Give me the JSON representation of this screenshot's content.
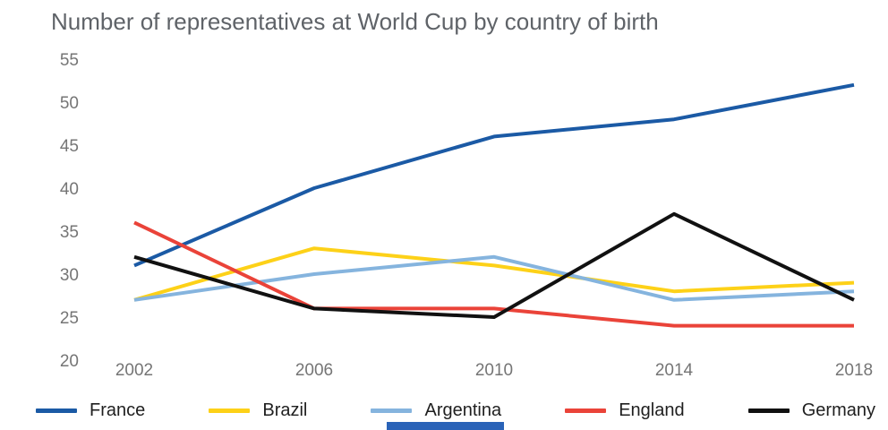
{
  "title": "Number of representatives at World Cup by country of birth",
  "axis": {
    "tick_color": "#757575",
    "tick_font_px": 19
  },
  "chart_data": {
    "type": "line",
    "title": "Number of representatives at World Cup by country of birth",
    "x": [
      "2002",
      "2006",
      "2010",
      "2014",
      "2018"
    ],
    "series": [
      {
        "name": "France",
        "color": "#1b5aa5",
        "values": [
          31,
          40,
          46,
          48,
          52
        ]
      },
      {
        "name": "Brazil",
        "color": "#fdd118",
        "values": [
          27,
          33,
          31,
          28,
          29
        ]
      },
      {
        "name": "Argentina",
        "color": "#85b4de",
        "values": [
          27,
          30,
          32,
          27,
          28
        ]
      },
      {
        "name": "England",
        "color": "#ea4339",
        "values": [
          36,
          26,
          26,
          24,
          24
        ]
      },
      {
        "name": "Germany",
        "color": "#111111",
        "values": [
          32,
          26,
          25,
          37,
          27
        ]
      }
    ],
    "xlabel": "",
    "ylabel": "",
    "ylim": [
      20,
      55
    ],
    "yticks": [
      55,
      50,
      45,
      40,
      35,
      30,
      25,
      20
    ],
    "grid": false,
    "legend_position": "bottom"
  },
  "misc": {
    "bottom_bar_color": "#2a63b8"
  }
}
